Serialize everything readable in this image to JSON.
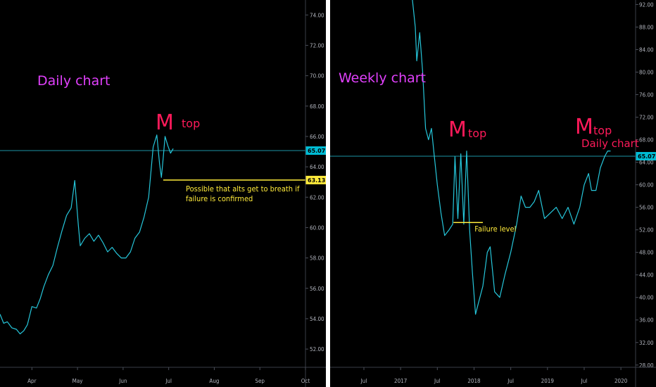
{
  "chart_data": [
    {
      "type": "line",
      "panel": "left",
      "title": "Daily chart",
      "colors": {
        "line": "#26c6da",
        "hline": "#26c6da",
        "support": "#ffeb3b",
        "title": "#e040fb",
        "pattern": "#ff1a5a"
      },
      "x_ticks": [
        "Apr",
        "May",
        "Jun",
        "Jul",
        "Aug",
        "Sep",
        "Oct"
      ],
      "x_tick_pos": [
        1.0,
        2.0,
        3.0,
        4.0,
        5.0,
        6.0,
        7.0
      ],
      "xlim": [
        0.3,
        7.0
      ],
      "ylim": [
        50.8,
        74.8
      ],
      "y_ticks": [
        52.0,
        54.0,
        56.0,
        58.0,
        60.0,
        62.0,
        64.0,
        66.0,
        68.0,
        70.0,
        72.0,
        74.0
      ],
      "y_tick_labels": [
        "52.00",
        "54.00",
        "56.00",
        "58.00",
        "60.00",
        "62.00",
        "64.00",
        "66.00",
        "68.00",
        "70.00",
        "72.00",
        "74.00"
      ],
      "series": [
        {
          "x": [
            0.3,
            0.38,
            0.46,
            0.56,
            0.66,
            0.74,
            0.82,
            0.9,
            1.0,
            1.1,
            1.18,
            1.26,
            1.36,
            1.46,
            1.56,
            1.66,
            1.76,
            1.86,
            1.94,
            2.02,
            2.06,
            2.1,
            2.16,
            2.26,
            2.36,
            2.46,
            2.56,
            2.66,
            2.76,
            2.86,
            2.96,
            3.06,
            3.16,
            3.26,
            3.36,
            3.46,
            3.56,
            3.66,
            3.74,
            3.8,
            3.84,
            3.88,
            3.92,
            3.98,
            4.04,
            4.1
          ],
          "y": [
            54.3,
            53.7,
            53.8,
            53.4,
            53.3,
            53.0,
            53.2,
            53.6,
            54.8,
            54.7,
            55.3,
            56.1,
            56.9,
            57.5,
            58.7,
            59.8,
            60.8,
            61.3,
            63.1,
            60.1,
            58.8,
            59.0,
            59.3,
            59.6,
            59.1,
            59.5,
            59.0,
            58.4,
            58.7,
            58.3,
            58.0,
            58.0,
            58.4,
            59.3,
            59.7,
            60.7,
            62.0,
            65.3,
            66.1,
            64.2,
            63.3,
            64.6,
            66.0,
            65.4,
            64.9,
            65.2
          ],
          "estimated": true
        }
      ],
      "hlines": [
        {
          "y": 65.07,
          "label": "65.07"
        }
      ],
      "support_line": {
        "y": 63.13,
        "x_from": 3.88,
        "x_to": 7.0,
        "label": "63.13"
      },
      "annotations": {
        "title": "Daily chart",
        "pattern_letter": "M",
        "pattern_word": "top",
        "note_line1": "Possible that alts get to breath if",
        "note_line2": "failure is confirmed"
      }
    },
    {
      "type": "line",
      "panel": "right",
      "title": "Weekly chart",
      "colors": {
        "line": "#26c6da",
        "hline": "#26c6da",
        "support": "#ffeb3b",
        "title": "#e040fb",
        "pattern": "#ff1a5a"
      },
      "x_ticks": [
        "Jul",
        "2017",
        "Jul",
        "2018",
        "Jul",
        "2019",
        "Jul",
        "2020"
      ],
      "x_tick_pos": [
        2016.5,
        2017.0,
        2017.5,
        2018.0,
        2018.5,
        2019.0,
        2019.5,
        2020.0
      ],
      "xlim": [
        2016.04,
        2020.2
      ],
      "ylim": [
        27.6,
        92.8
      ],
      "y_ticks": [
        28,
        32,
        36,
        40,
        44,
        48,
        52,
        56,
        60,
        64,
        68,
        72,
        76,
        80,
        84,
        88,
        92
      ],
      "y_tick_labels": [
        "28.00",
        "32.00",
        "36.00",
        "40.00",
        "44.00",
        "48.00",
        "52.00",
        "56.00",
        "60.00",
        "64.00",
        "68.00",
        "72.00",
        "76.00",
        "80.00",
        "84.00",
        "88.00",
        "92.00"
      ],
      "series": [
        {
          "x": [
            2017.16,
            2017.2,
            2017.22,
            2017.26,
            2017.3,
            2017.34,
            2017.38,
            2017.42,
            2017.46,
            2017.5,
            2017.55,
            2017.6,
            2017.66,
            2017.71,
            2017.74,
            2017.78,
            2017.82,
            2017.86,
            2017.9,
            2017.94,
            2017.98,
            2018.02,
            2018.06,
            2018.12,
            2018.18,
            2018.22,
            2018.28,
            2018.35,
            2018.42,
            2018.5,
            2018.58,
            2018.64,
            2018.7,
            2018.76,
            2018.82,
            2018.88,
            2018.96,
            2019.04,
            2019.12,
            2019.2,
            2019.28,
            2019.36,
            2019.44,
            2019.5,
            2019.56,
            2019.6,
            2019.66,
            2019.72,
            2019.78,
            2019.82,
            2019.86
          ],
          "y": [
            93.0,
            88.0,
            82.0,
            87.0,
            80.0,
            70.0,
            68.0,
            70.0,
            65.0,
            60.0,
            55.0,
            51.0,
            52.0,
            53.0,
            65.0,
            54.0,
            65.5,
            53.0,
            66.0,
            52.0,
            44.0,
            37.0,
            39.0,
            42.0,
            48.0,
            49.0,
            41.0,
            40.0,
            44.0,
            48.0,
            53.0,
            58.0,
            56.0,
            56.0,
            57.0,
            59.0,
            54.0,
            55.0,
            56.0,
            54.0,
            56.0,
            53.0,
            56.0,
            60.0,
            62.0,
            59.0,
            59.0,
            63.0,
            65.07,
            66.0,
            66.0
          ],
          "estimated": true
        }
      ],
      "hlines": [
        {
          "y": 65.07,
          "label": "65.07"
        }
      ],
      "support_line": {
        "y": 53.3,
        "x_from": 2017.72,
        "x_to": 2018.12,
        "label": "Failure level"
      },
      "annotations": {
        "title": "Weekly chart",
        "pattern1_letter": "M",
        "pattern1_word": "top",
        "pattern2_letter": "M",
        "pattern2_word": "top",
        "pattern2_note": "Daily chart"
      }
    }
  ]
}
